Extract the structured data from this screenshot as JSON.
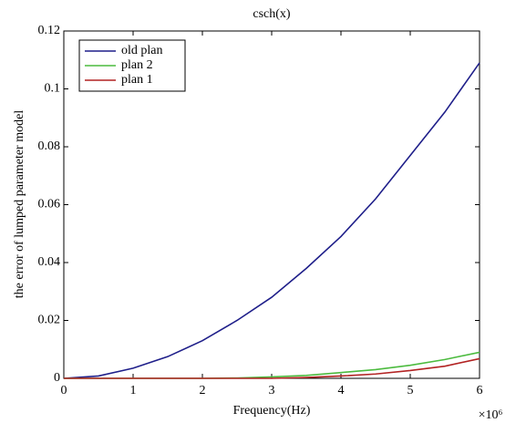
{
  "chart_data": {
    "type": "line",
    "title": "csch(x)",
    "x_label": "Frequency(Hz)",
    "y_label": "the error of lumped parameter model",
    "x_multiplier": "×10⁶",
    "x": [
      0,
      0.5,
      1,
      1.5,
      2,
      2.5,
      3,
      3.5,
      4,
      4.5,
      5,
      5.5,
      6
    ],
    "series": [
      {
        "name": "old plan",
        "color": "#1f1f8a",
        "values": [
          0,
          0.0008,
          0.0035,
          0.0075,
          0.013,
          0.02,
          0.028,
          0.038,
          0.049,
          0.062,
          0.077,
          0.092,
          0.109
        ]
      },
      {
        "name": "plan 2",
        "color": "#4cbb3f",
        "values": [
          0,
          0,
          0,
          0,
          0,
          0.0001,
          0.0005,
          0.001,
          0.002,
          0.003,
          0.0045,
          0.0065,
          0.009
        ]
      },
      {
        "name": "plan 1",
        "color": "#b22222",
        "values": [
          0,
          0,
          0,
          0,
          0,
          0,
          0,
          0.0003,
          0.0008,
          0.0015,
          0.0027,
          0.0042,
          0.0068
        ]
      }
    ],
    "xlim": [
      0,
      6
    ],
    "xticks": [
      0,
      1,
      2,
      3,
      4,
      5,
      6
    ],
    "ylim": [
      0,
      0.12
    ],
    "yticks": [
      0,
      0.02,
      0.04,
      0.06,
      0.08,
      0.1,
      0.12
    ],
    "grid": false,
    "legend": "upper left"
  }
}
